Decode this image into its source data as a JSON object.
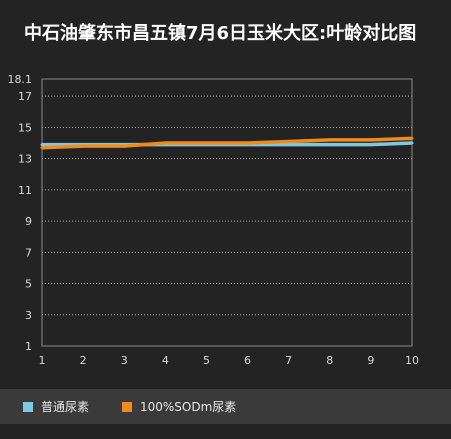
{
  "chart_data": {
    "type": "line",
    "title": "中石油肇东市昌五镇7月6日玉米大区:叶龄对比图",
    "x": [
      1,
      2,
      3,
      4,
      5,
      6,
      7,
      8,
      9,
      10
    ],
    "x_tick_labels": [
      "1",
      "2",
      "3",
      "4",
      "5",
      "6",
      "7",
      "8",
      "9",
      "10"
    ],
    "y_tick_labels": [
      "1",
      "3",
      "5",
      "7",
      "9",
      "11",
      "13",
      "15",
      "17",
      "18.1"
    ],
    "y_ticks": [
      1,
      3,
      5,
      7,
      9,
      11,
      13,
      15,
      17,
      18.1
    ],
    "ylim": [
      1,
      18.1
    ],
    "xlim": [
      1,
      10
    ],
    "grid": true,
    "legend_position": "bottom",
    "series": [
      {
        "name": "普通尿素",
        "color": "#7fc8e0",
        "values": [
          13.9,
          13.9,
          13.9,
          13.9,
          13.9,
          13.9,
          13.9,
          13.9,
          13.9,
          14.0
        ]
      },
      {
        "name": "100%SODm尿素",
        "color": "#f08a1c",
        "values": [
          13.7,
          13.8,
          13.8,
          14.0,
          14.0,
          14.0,
          14.1,
          14.2,
          14.2,
          14.3
        ]
      }
    ],
    "colors": {
      "background": "#232323",
      "plot_border": "#8a8a8a",
      "grid": "#b0b0b0",
      "tick_text": "#d8d8d8",
      "legend_bar": "#3a3a3a"
    }
  }
}
